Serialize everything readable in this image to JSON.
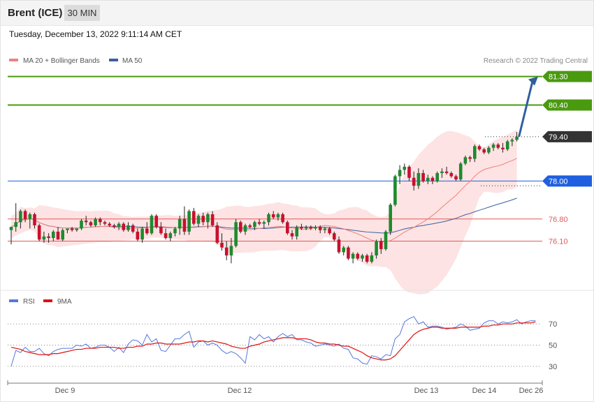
{
  "header": {
    "instrument": "Brent (ICE)",
    "timeframe": "30 MIN",
    "datetime": "Tuesday, December 13, 2022 9:11:14 AM CET"
  },
  "legend": {
    "ma20_bb": "MA 20 + Bollinger Bands",
    "ma50": "MA 50",
    "rsi": "RSI",
    "ma9": "9MA"
  },
  "copyright": "Research © 2022 Trading Central",
  "colors": {
    "ma20": "#f08080",
    "ma50": "#3b5f9e",
    "bb_fill": "#fde3e3",
    "bull": "#1e8a2e",
    "bear": "#c8102e",
    "target": "#4a9a10",
    "pivot": "#1f5fe0",
    "support": "#e05a5a",
    "arrow": "#2f5f9e",
    "rsi": "#5577dd",
    "rsi_ma": "#e01010",
    "last_price": "#333333"
  },
  "chart_data": [
    {
      "type": "candlestick",
      "ylim": [
        74.9,
        81.6
      ],
      "levels": [
        {
          "label": "81.30",
          "value": 81.3,
          "kind": "target"
        },
        {
          "label": "80.40",
          "value": 80.4,
          "kind": "target"
        },
        {
          "label": "79.40",
          "value": 79.4,
          "kind": "last"
        },
        {
          "label": "78.00",
          "value": 78.0,
          "kind": "pivot"
        },
        {
          "label": "76.80",
          "value": 76.8,
          "kind": "support"
        },
        {
          "label": "76.10",
          "value": 76.1,
          "kind": "support"
        }
      ],
      "x_ticks": [
        "Dec 9",
        "Dec 12",
        "Dec 13",
        "Dec 14",
        "Dec 26"
      ],
      "arrow": {
        "from": 79.4,
        "to": 81.3
      },
      "candles": [
        [
          76.45,
          76.55,
          76.0,
          76.55
        ],
        [
          76.55,
          77.3,
          76.4,
          76.7
        ],
        [
          76.7,
          77.1,
          76.5,
          77.05
        ],
        [
          77.05,
          77.1,
          76.7,
          76.8
        ],
        [
          76.8,
          77.0,
          76.5,
          76.95
        ],
        [
          76.95,
          77.0,
          76.5,
          76.6
        ],
        [
          76.6,
          76.65,
          76.1,
          76.15
        ],
        [
          76.15,
          76.4,
          76.05,
          76.25
        ],
        [
          76.25,
          76.35,
          76.05,
          76.2
        ],
        [
          76.2,
          76.45,
          76.1,
          76.4
        ],
        [
          76.4,
          76.55,
          76.15,
          76.15
        ],
        [
          76.15,
          76.5,
          76.1,
          76.45
        ],
        [
          76.45,
          76.5,
          76.35,
          76.5
        ],
        [
          76.5,
          76.55,
          76.4,
          76.45
        ],
        [
          76.45,
          76.5,
          76.4,
          76.5
        ],
        [
          76.5,
          76.8,
          76.45,
          76.75
        ],
        [
          76.75,
          76.9,
          76.6,
          76.7
        ],
        [
          76.7,
          76.75,
          76.55,
          76.6
        ],
        [
          76.6,
          76.85,
          76.55,
          76.8
        ],
        [
          76.8,
          76.85,
          76.6,
          76.7
        ],
        [
          76.7,
          76.75,
          76.6,
          76.65
        ],
        [
          76.65,
          76.7,
          76.55,
          76.6
        ],
        [
          76.6,
          76.65,
          76.5,
          76.55
        ],
        [
          76.55,
          76.7,
          76.45,
          76.65
        ],
        [
          76.65,
          76.7,
          76.4,
          76.45
        ],
        [
          76.45,
          76.7,
          76.4,
          76.6
        ],
        [
          76.6,
          76.65,
          76.35,
          76.4
        ],
        [
          76.4,
          76.5,
          76.1,
          76.15
        ],
        [
          76.15,
          76.55,
          76.05,
          76.5
        ],
        [
          76.5,
          76.7,
          76.3,
          76.35
        ],
        [
          76.35,
          76.95,
          76.3,
          76.9
        ],
        [
          76.9,
          76.95,
          76.5,
          76.55
        ],
        [
          76.55,
          76.7,
          76.3,
          76.35
        ],
        [
          76.35,
          76.5,
          76.15,
          76.2
        ],
        [
          76.2,
          76.4,
          76.1,
          76.35
        ],
        [
          76.35,
          76.55,
          76.25,
          76.5
        ],
        [
          76.5,
          76.9,
          76.3,
          76.8
        ],
        [
          76.8,
          77.2,
          76.3,
          76.4
        ],
        [
          76.4,
          77.1,
          76.3,
          77.05
        ],
        [
          77.05,
          77.15,
          76.6,
          76.65
        ],
        [
          76.65,
          76.95,
          76.55,
          76.9
        ],
        [
          76.9,
          77.0,
          76.6,
          76.7
        ],
        [
          76.7,
          77.0,
          76.5,
          76.95
        ],
        [
          76.95,
          77.05,
          76.55,
          76.6
        ],
        [
          76.6,
          76.7,
          76.0,
          76.05
        ],
        [
          76.05,
          76.35,
          75.8,
          75.9
        ],
        [
          75.9,
          76.1,
          75.5,
          75.65
        ],
        [
          75.65,
          76.2,
          75.4,
          75.95
        ],
        [
          75.95,
          76.8,
          75.9,
          76.7
        ],
        [
          76.7,
          76.75,
          76.35,
          76.4
        ],
        [
          76.4,
          76.65,
          76.3,
          76.6
        ],
        [
          76.6,
          76.65,
          76.5,
          76.55
        ],
        [
          76.55,
          76.75,
          76.45,
          76.7
        ],
        [
          76.7,
          76.8,
          76.6,
          76.65
        ],
        [
          76.65,
          76.75,
          76.5,
          76.7
        ],
        [
          76.7,
          77.0,
          76.6,
          76.95
        ],
        [
          76.95,
          77.05,
          76.8,
          76.85
        ],
        [
          76.85,
          77.0,
          76.75,
          76.95
        ],
        [
          76.95,
          77.0,
          76.65,
          76.7
        ],
        [
          76.7,
          76.75,
          76.3,
          76.35
        ],
        [
          76.35,
          76.45,
          76.15,
          76.25
        ],
        [
          76.25,
          76.6,
          76.15,
          76.55
        ],
        [
          76.55,
          76.65,
          76.45,
          76.5
        ],
        [
          76.5,
          76.6,
          76.45,
          76.55
        ],
        [
          76.55,
          76.6,
          76.45,
          76.5
        ],
        [
          76.5,
          76.6,
          76.45,
          76.55
        ],
        [
          76.55,
          76.6,
          76.35,
          76.45
        ],
        [
          76.45,
          76.55,
          76.35,
          76.5
        ],
        [
          76.5,
          76.55,
          76.3,
          76.35
        ],
        [
          76.35,
          76.4,
          76.1,
          76.15
        ],
        [
          76.15,
          76.25,
          75.7,
          75.75
        ],
        [
          75.75,
          75.95,
          75.65,
          75.9
        ],
        [
          75.9,
          75.95,
          75.5,
          75.55
        ],
        [
          75.55,
          75.75,
          75.4,
          75.7
        ],
        [
          75.7,
          75.75,
          75.5,
          75.55
        ],
        [
          75.55,
          75.7,
          75.45,
          75.65
        ],
        [
          75.65,
          75.7,
          75.4,
          75.45
        ],
        [
          75.45,
          75.75,
          75.4,
          75.65
        ],
        [
          75.65,
          76.15,
          75.55,
          76.1
        ],
        [
          76.1,
          76.2,
          75.7,
          75.85
        ],
        [
          75.85,
          76.45,
          75.8,
          76.4
        ],
        [
          76.4,
          77.3,
          76.3,
          77.25
        ],
        [
          77.25,
          78.2,
          77.2,
          78.15
        ],
        [
          78.15,
          78.5,
          77.9,
          78.35
        ],
        [
          78.35,
          78.55,
          78.2,
          78.45
        ],
        [
          78.45,
          78.5,
          78.0,
          78.1
        ],
        [
          78.1,
          78.3,
          77.7,
          77.85
        ],
        [
          77.85,
          78.4,
          77.75,
          78.25
        ],
        [
          78.25,
          78.35,
          77.95,
          78.0
        ],
        [
          78.0,
          78.2,
          77.9,
          78.1
        ],
        [
          78.1,
          78.15,
          77.9,
          78.0
        ],
        [
          78.0,
          78.3,
          77.95,
          78.25
        ],
        [
          78.25,
          78.4,
          78.1,
          78.3
        ],
        [
          78.3,
          78.45,
          78.2,
          78.25
        ],
        [
          78.25,
          78.3,
          78.1,
          78.15
        ],
        [
          78.15,
          78.2,
          78.0,
          78.05
        ],
        [
          78.05,
          78.6,
          78.0,
          78.55
        ],
        [
          78.55,
          78.8,
          78.5,
          78.75
        ],
        [
          78.75,
          78.8,
          78.6,
          78.7
        ],
        [
          78.7,
          79.15,
          78.6,
          79.1
        ],
        [
          79.1,
          79.15,
          78.95,
          79.0
        ],
        [
          79.0,
          79.05,
          78.85,
          78.9
        ],
        [
          78.9,
          79.1,
          78.85,
          79.05
        ],
        [
          79.05,
          79.2,
          78.95,
          79.15
        ],
        [
          79.15,
          79.2,
          79.0,
          79.05
        ],
        [
          79.05,
          79.2,
          78.9,
          79.0
        ],
        [
          79.0,
          79.3,
          78.95,
          79.25
        ],
        [
          79.25,
          79.35,
          79.1,
          79.3
        ],
        [
          79.3,
          79.55,
          79.25,
          79.4
        ]
      ]
    },
    {
      "type": "line",
      "ylim": [
        20,
        82
      ],
      "levels": [
        {
          "label": "70",
          "value": 70
        },
        {
          "label": "50",
          "value": 50
        },
        {
          "label": "30",
          "value": 30
        }
      ],
      "series": [
        {
          "name": "RSI",
          "values": [
            30,
            45,
            43,
            48,
            44,
            44,
            47,
            42,
            40,
            44,
            46,
            47,
            47,
            47,
            50,
            49,
            51,
            47,
            48,
            50,
            50,
            48,
            44,
            48,
            43,
            51,
            55,
            54,
            50,
            60,
            53,
            56,
            45,
            44,
            50,
            56,
            56,
            60,
            63,
            48,
            53,
            54,
            50,
            52,
            50,
            45,
            42,
            44,
            42,
            38,
            33,
            58,
            55,
            60,
            56,
            58,
            53,
            58,
            61,
            58,
            60,
            55,
            55,
            53,
            52,
            49,
            50,
            51,
            50,
            49,
            51,
            47,
            46,
            38,
            37,
            33,
            32,
            40,
            39,
            37,
            41,
            40,
            56,
            60,
            72,
            75,
            77,
            70,
            72,
            67,
            68,
            68,
            67,
            65,
            66,
            67,
            70,
            68,
            64,
            65,
            66,
            71,
            73,
            73,
            70,
            72,
            71,
            72,
            74,
            70,
            72,
            73,
            73
          ]
        },
        {
          "name": "9MA",
          "values": [
            48,
            47,
            46,
            44,
            43,
            42,
            41,
            41,
            41,
            42,
            42,
            43,
            44,
            45,
            46,
            46,
            47,
            47,
            47,
            48,
            48,
            48,
            48,
            47,
            47,
            48,
            48,
            49,
            49,
            51,
            51,
            52,
            52,
            51,
            51,
            51,
            51,
            52,
            53,
            53,
            54,
            54,
            53,
            54,
            53,
            52,
            51,
            49,
            48,
            47,
            47,
            49,
            50,
            51,
            53,
            54,
            55,
            56,
            57,
            57,
            57,
            56,
            56,
            56,
            55,
            53,
            52,
            52,
            51,
            51,
            50,
            49,
            49,
            47,
            45,
            43,
            40,
            38,
            37,
            36,
            36,
            37,
            40,
            45,
            50,
            55,
            60,
            63,
            65,
            66,
            67,
            67,
            66,
            66,
            66,
            66,
            67,
            67,
            67,
            67,
            67,
            68,
            68,
            69,
            69,
            70,
            70,
            70,
            71,
            71,
            71,
            71,
            72
          ]
        }
      ],
      "x_ticks": [
        "Dec 9",
        "Dec 12",
        "Dec 13",
        "Dec 14",
        "Dec 26"
      ]
    }
  ]
}
